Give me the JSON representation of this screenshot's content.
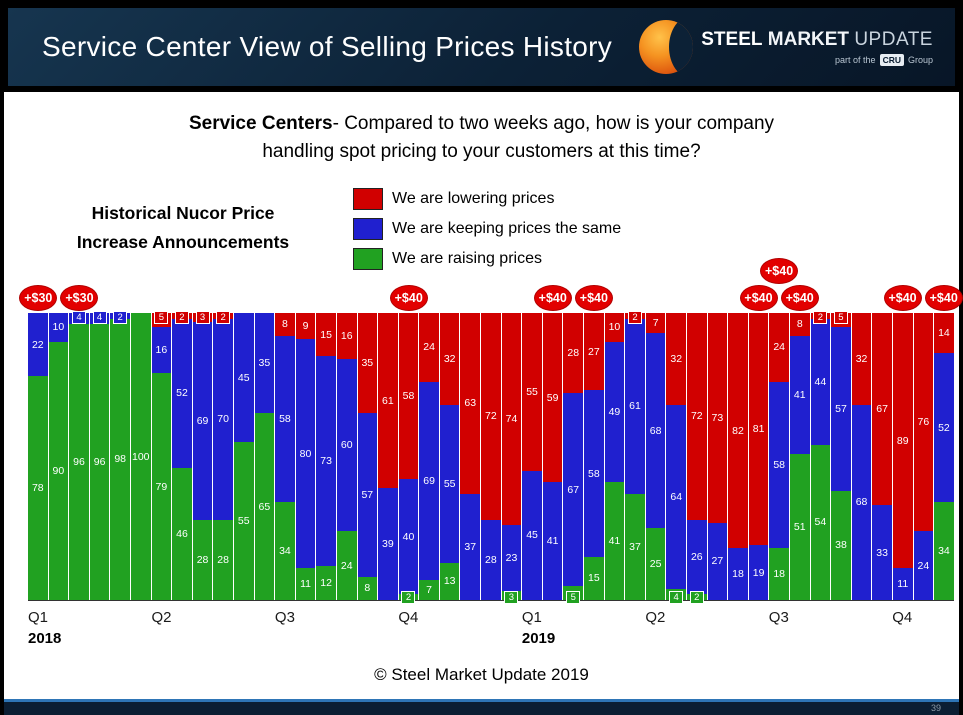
{
  "header": {
    "title": "Service Center View of Selling Prices History",
    "logo": {
      "steel": "STEEL",
      "market": "MARKET",
      "update": "UPDATE",
      "tagline_pre": "part of the",
      "cru": "CRU",
      "group": "Group"
    }
  },
  "question": {
    "bold": "Service Centers",
    "line1_rest": "- Compared to two weeks ago, how is your company",
    "line2": "handling spot pricing to your customers at this time?"
  },
  "left_note": {
    "line1": "Historical Nucor Price",
    "line2": "Increase Announcements"
  },
  "footer": "© Steel Market Update 2019",
  "page_number": "39",
  "chart_data": {
    "type": "bar",
    "stacked": true,
    "unit": "percent",
    "ylim": [
      0,
      100
    ],
    "grid": false,
    "legend_position": "top-center",
    "legend": [
      {
        "name": "lowering",
        "label": "We are lowering prices",
        "color": "#d10000"
      },
      {
        "name": "keeping",
        "label": "We are keeping prices the same",
        "color": "#2020cf"
      },
      {
        "name": "raising",
        "label": "We are raising prices",
        "color": "#21a121"
      }
    ],
    "quarters": [
      {
        "label": "Q1",
        "year": "2018",
        "start_bar": 1
      },
      {
        "label": "Q2",
        "start_bar": 7
      },
      {
        "label": "Q3",
        "start_bar": 13
      },
      {
        "label": "Q4",
        "start_bar": 19
      },
      {
        "label": "Q1",
        "year": "2019",
        "start_bar": 25
      },
      {
        "label": "Q2",
        "start_bar": 31
      },
      {
        "label": "Q3",
        "start_bar": 37
      },
      {
        "label": "Q4",
        "start_bar": 43
      }
    ],
    "bars": [
      {
        "raising": 78,
        "keeping": 22,
        "lowering": 0
      },
      {
        "raising": 90,
        "keeping": 10,
        "lowering": 0
      },
      {
        "raising": 96,
        "keeping": 4,
        "lowering": 0
      },
      {
        "raising": 96,
        "keeping": 4,
        "lowering": 0
      },
      {
        "raising": 98,
        "keeping": 2,
        "lowering": 0
      },
      {
        "raising": 100,
        "keeping": 0,
        "lowering": 0
      },
      {
        "raising": 79,
        "keeping": 16,
        "lowering": 5
      },
      {
        "raising": 46,
        "keeping": 52,
        "lowering": 2
      },
      {
        "raising": 28,
        "keeping": 69,
        "lowering": 3
      },
      {
        "raising": 28,
        "keeping": 70,
        "lowering": 2
      },
      {
        "raising": 55,
        "keeping": 45,
        "lowering": 0
      },
      {
        "raising": 65,
        "keeping": 35,
        "lowering": 0
      },
      {
        "raising": 34,
        "keeping": 58,
        "lowering": 8
      },
      {
        "raising": 11,
        "keeping": 80,
        "lowering": 9
      },
      {
        "raising": 12,
        "keeping": 73,
        "lowering": 15
      },
      {
        "raising": 24,
        "keeping": 60,
        "lowering": 16
      },
      {
        "raising": 8,
        "keeping": 57,
        "lowering": 35
      },
      {
        "raising": 0,
        "keeping": 39,
        "lowering": 61
      },
      {
        "raising": 2,
        "keeping": 40,
        "lowering": 58
      },
      {
        "raising": 7,
        "keeping": 69,
        "lowering": 24
      },
      {
        "raising": 13,
        "keeping": 55,
        "lowering": 32
      },
      {
        "raising": 0,
        "keeping": 37,
        "lowering": 63
      },
      {
        "raising": 0,
        "keeping": 28,
        "lowering": 72
      },
      {
        "raising": 3,
        "keeping": 23,
        "lowering": 74
      },
      {
        "raising": 0,
        "keeping": 45,
        "lowering": 55
      },
      {
        "raising": 0,
        "keeping": 41,
        "lowering": 59
      },
      {
        "raising": 5,
        "keeping": 67,
        "lowering": 28
      },
      {
        "raising": 15,
        "keeping": 58,
        "lowering": 27
      },
      {
        "raising": 41,
        "keeping": 49,
        "lowering": 10
      },
      {
        "raising": 37,
        "keeping": 61,
        "lowering": 2
      },
      {
        "raising": 25,
        "keeping": 68,
        "lowering": 7
      },
      {
        "raising": 4,
        "keeping": 64,
        "lowering": 32
      },
      {
        "raising": 2,
        "keeping": 26,
        "lowering": 72
      },
      {
        "raising": 0,
        "keeping": 27,
        "lowering": 73
      },
      {
        "raising": 0,
        "keeping": 18,
        "lowering": 82
      },
      {
        "raising": 0,
        "keeping": 19,
        "lowering": 81
      },
      {
        "raising": 18,
        "keeping": 58,
        "lowering": 24
      },
      {
        "raising": 51,
        "keeping": 41,
        "lowering": 8
      },
      {
        "raising": 54,
        "keeping": 44,
        "lowering": 2
      },
      {
        "raising": 38,
        "keeping": 57,
        "lowering": 5
      },
      {
        "raising": 0,
        "keeping": 68,
        "lowering": 32
      },
      {
        "raising": 0,
        "keeping": 33,
        "lowering": 67
      },
      {
        "raising": 0,
        "keeping": 11,
        "lowering": 89
      },
      {
        "raising": 0,
        "keeping": 24,
        "lowering": 76
      },
      {
        "raising": 34,
        "keeping": 52,
        "lowering": 14
      }
    ],
    "annotations": [
      {
        "bar": 1,
        "label": "+$30"
      },
      {
        "bar": 3,
        "label": "+$30"
      },
      {
        "bar": 19,
        "label": "+$40"
      },
      {
        "bar": 26,
        "label": "+$40"
      },
      {
        "bar": 28,
        "label": "+$40"
      },
      {
        "bar": 36,
        "label": "+$40"
      },
      {
        "bar": 37,
        "label": "+$40",
        "raised": true
      },
      {
        "bar": 38,
        "label": "+$40"
      },
      {
        "bar": 43,
        "label": "+$40"
      },
      {
        "bar": 45,
        "label": "+$40"
      }
    ]
  }
}
